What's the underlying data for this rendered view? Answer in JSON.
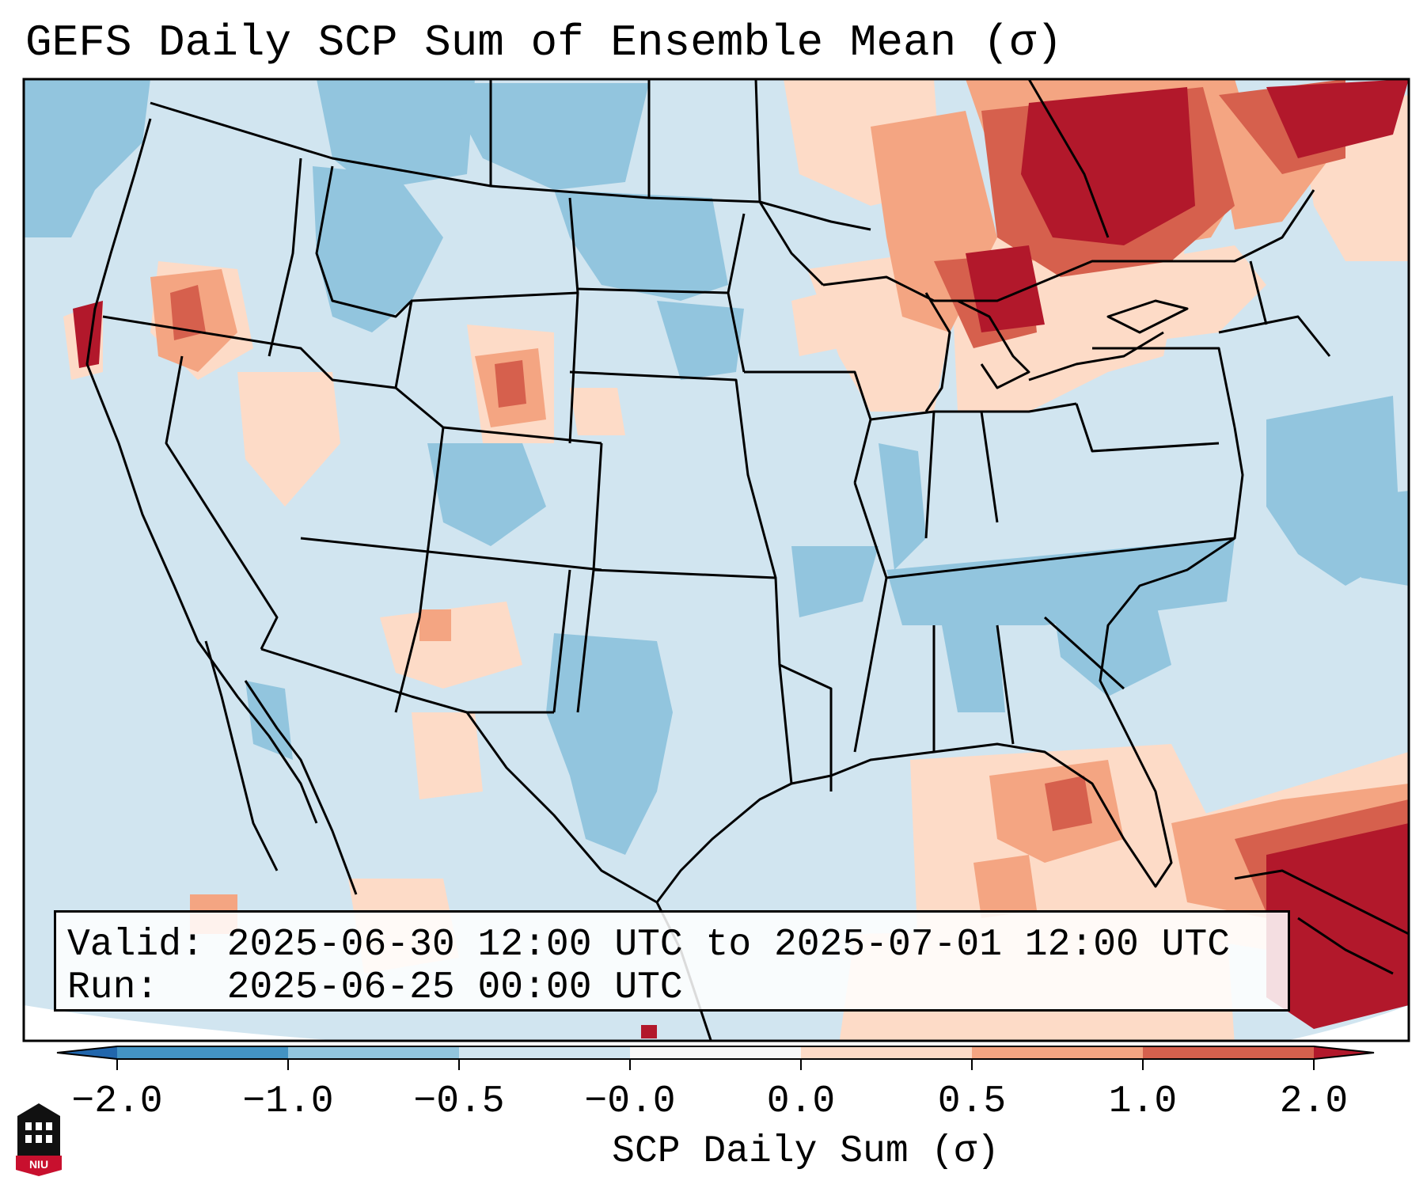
{
  "title": "GEFS Daily SCP Sum of Ensemble Mean (σ)",
  "info": {
    "valid": "Valid: 2025-06-30 12:00 UTC to 2025-07-01 12:00 UTC",
    "run": "Run:   2025-06-25 00:00 UTC"
  },
  "colorbar": {
    "label": "SCP Daily Sum (σ)",
    "ticks": [
      "−2.0",
      "−1.0",
      "−0.5",
      "−0.0",
      "0.0",
      "0.5",
      "1.0",
      "2.0"
    ],
    "bins": [
      {
        "range": "<-2.0",
        "color": "#2166ac"
      },
      {
        "range": "-2.0 to -1.0",
        "color": "#4393c3"
      },
      {
        "range": "-1.0 to -0.5",
        "color": "#92c5de"
      },
      {
        "range": "-0.5 to -0.0",
        "color": "#d1e5f0"
      },
      {
        "range": "-0.0 to 0.0",
        "color": "#f7f7f7"
      },
      {
        "range": "0.0 to 0.5",
        "color": "#fddbc7"
      },
      {
        "range": "0.5 to 1.0",
        "color": "#f4a582"
      },
      {
        "range": "1.0 to 2.0",
        "color": "#d6604d"
      },
      {
        "range": ">2.0",
        "color": "#b2182b"
      }
    ]
  },
  "logo": {
    "text": "NIU",
    "accent": "#c8102e"
  },
  "colors": {
    "background_field": "#d1e5f0",
    "border": "#000000"
  }
}
